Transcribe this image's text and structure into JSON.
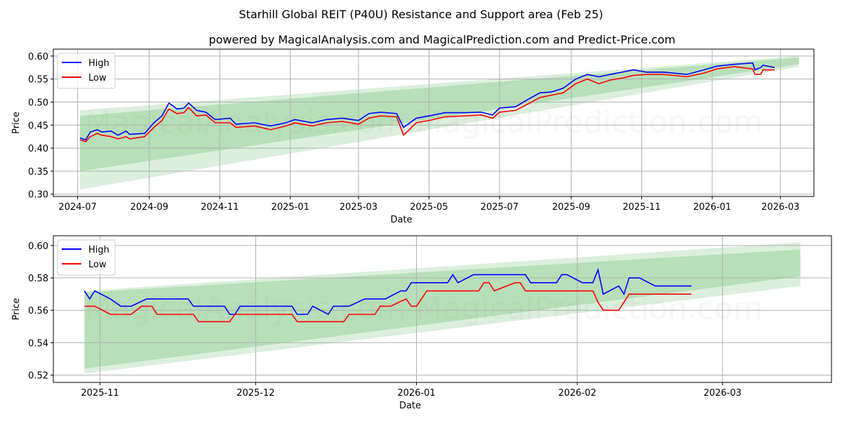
{
  "title": "Starhill Global REIT (P40U) Resistance and Support area (Feb 25)",
  "subtitle": "powered by MagicalAnalysis.com and MagicalPrediction.com and Predict-Price.com",
  "watermarks": [
    "MagicalAnalysis.com",
    "MagicalPrediction.com"
  ],
  "colors": {
    "high": "#0000ff",
    "low": "#ff0000",
    "band": "#4caf50"
  },
  "chart_data": [
    {
      "type": "line",
      "xlabel": "Date",
      "ylabel": "Price",
      "ylim": [
        0.295,
        0.615
      ],
      "yticks": [
        0.3,
        0.35,
        0.4,
        0.45,
        0.5,
        0.55,
        0.6
      ],
      "ytick_labels": [
        "0.30",
        "0.35",
        "0.40",
        "0.45",
        "0.50",
        "0.55",
        "0.60"
      ],
      "xticks": [
        "2024-07-01",
        "2024-09-01",
        "2024-11-01",
        "2025-01-01",
        "2025-03-01",
        "2025-05-01",
        "2025-07-01",
        "2025-09-01",
        "2025-11-01",
        "2026-01-01",
        "2026-03-01"
      ],
      "xtick_labels": [
        "2024-07",
        "2024-09",
        "2024-11",
        "2025-01",
        "2025-03",
        "2025-05",
        "2025-07",
        "2025-09",
        "2025-11",
        "2026-01",
        "2026-03"
      ],
      "xlim": [
        "2024-06-10",
        "2026-03-30"
      ],
      "grid": true,
      "legend": "top-left",
      "legend_entries": [
        "High",
        "Low"
      ],
      "bands": [
        {
          "start": "2024-07-03",
          "end": "2026-03-17",
          "upper": [
            0.482,
            0.6
          ],
          "lower": [
            0.31,
            0.577
          ]
        },
        {
          "start": "2024-07-03",
          "end": "2026-03-17",
          "upper": [
            0.47,
            0.597
          ],
          "lower": [
            0.35,
            0.582
          ]
        }
      ],
      "series": [
        {
          "name": "High",
          "points": [
            [
              "2024-07-03",
              0.422
            ],
            [
              "2024-07-08",
              0.418
            ],
            [
              "2024-07-12",
              0.435
            ],
            [
              "2024-07-18",
              0.44
            ],
            [
              "2024-07-22",
              0.435
            ],
            [
              "2024-07-30",
              0.437
            ],
            [
              "2024-08-05",
              0.428
            ],
            [
              "2024-08-12",
              0.437
            ],
            [
              "2024-08-15",
              0.43
            ],
            [
              "2024-08-28",
              0.432
            ],
            [
              "2024-09-05",
              0.455
            ],
            [
              "2024-09-12",
              0.47
            ],
            [
              "2024-09-18",
              0.498
            ],
            [
              "2024-09-25",
              0.485
            ],
            [
              "2024-10-01",
              0.487
            ],
            [
              "2024-10-05",
              0.498
            ],
            [
              "2024-10-12",
              0.482
            ],
            [
              "2024-10-20",
              0.478
            ],
            [
              "2024-10-28",
              0.462
            ],
            [
              "2024-11-10",
              0.465
            ],
            [
              "2024-11-15",
              0.452
            ],
            [
              "2024-12-01",
              0.455
            ],
            [
              "2024-12-15",
              0.448
            ],
            [
              "2024-12-28",
              0.455
            ],
            [
              "2025-01-05",
              0.462
            ],
            [
              "2025-01-20",
              0.455
            ],
            [
              "2025-02-01",
              0.462
            ],
            [
              "2025-02-15",
              0.465
            ],
            [
              "2025-03-01",
              0.46
            ],
            [
              "2025-03-10",
              0.475
            ],
            [
              "2025-03-20",
              0.478
            ],
            [
              "2025-04-03",
              0.475
            ],
            [
              "2025-04-09",
              0.445
            ],
            [
              "2025-04-20",
              0.465
            ],
            [
              "2025-05-01",
              0.47
            ],
            [
              "2025-05-15",
              0.477
            ],
            [
              "2025-06-01",
              0.477
            ],
            [
              "2025-06-15",
              0.478
            ],
            [
              "2025-06-25",
              0.472
            ],
            [
              "2025-07-01",
              0.487
            ],
            [
              "2025-07-15",
              0.49
            ],
            [
              "2025-07-25",
              0.505
            ],
            [
              "2025-08-05",
              0.52
            ],
            [
              "2025-08-15",
              0.522
            ],
            [
              "2025-08-25",
              0.53
            ],
            [
              "2025-09-05",
              0.55
            ],
            [
              "2025-09-15",
              0.56
            ],
            [
              "2025-09-25",
              0.555
            ],
            [
              "2025-10-05",
              0.56
            ],
            [
              "2025-10-15",
              0.565
            ],
            [
              "2025-10-25",
              0.57
            ],
            [
              "2025-11-05",
              0.565
            ],
            [
              "2025-11-20",
              0.565
            ],
            [
              "2025-12-10",
              0.56
            ],
            [
              "2025-12-25",
              0.57
            ],
            [
              "2026-01-05",
              0.578
            ],
            [
              "2026-01-20",
              0.582
            ],
            [
              "2026-02-05",
              0.585
            ],
            [
              "2026-02-07",
              0.57
            ],
            [
              "2026-02-12",
              0.575
            ],
            [
              "2026-02-14",
              0.58
            ],
            [
              "2026-02-24",
              0.575
            ]
          ]
        },
        {
          "name": "Low",
          "points": [
            [
              "2024-07-03",
              0.418
            ],
            [
              "2024-07-08",
              0.414
            ],
            [
              "2024-07-12",
              0.425
            ],
            [
              "2024-07-18",
              0.432
            ],
            [
              "2024-07-22",
              0.428
            ],
            [
              "2024-07-30",
              0.425
            ],
            [
              "2024-08-05",
              0.42
            ],
            [
              "2024-08-12",
              0.425
            ],
            [
              "2024-08-15",
              0.42
            ],
            [
              "2024-08-28",
              0.425
            ],
            [
              "2024-09-05",
              0.445
            ],
            [
              "2024-09-12",
              0.46
            ],
            [
              "2024-09-18",
              0.485
            ],
            [
              "2024-09-25",
              0.475
            ],
            [
              "2024-10-01",
              0.477
            ],
            [
              "2024-10-05",
              0.488
            ],
            [
              "2024-10-12",
              0.47
            ],
            [
              "2024-10-20",
              0.472
            ],
            [
              "2024-10-28",
              0.455
            ],
            [
              "2024-11-10",
              0.455
            ],
            [
              "2024-11-15",
              0.445
            ],
            [
              "2024-12-01",
              0.448
            ],
            [
              "2024-12-15",
              0.44
            ],
            [
              "2024-12-28",
              0.448
            ],
            [
              "2025-01-05",
              0.455
            ],
            [
              "2025-01-20",
              0.448
            ],
            [
              "2025-02-01",
              0.455
            ],
            [
              "2025-02-15",
              0.458
            ],
            [
              "2025-03-01",
              0.452
            ],
            [
              "2025-03-10",
              0.465
            ],
            [
              "2025-03-20",
              0.47
            ],
            [
              "2025-04-03",
              0.468
            ],
            [
              "2025-04-09",
              0.428
            ],
            [
              "2025-04-20",
              0.455
            ],
            [
              "2025-05-01",
              0.46
            ],
            [
              "2025-05-15",
              0.468
            ],
            [
              "2025-06-01",
              0.47
            ],
            [
              "2025-06-15",
              0.472
            ],
            [
              "2025-06-25",
              0.465
            ],
            [
              "2025-07-01",
              0.478
            ],
            [
              "2025-07-15",
              0.482
            ],
            [
              "2025-07-25",
              0.495
            ],
            [
              "2025-08-05",
              0.51
            ],
            [
              "2025-08-15",
              0.515
            ],
            [
              "2025-08-25",
              0.52
            ],
            [
              "2025-09-05",
              0.54
            ],
            [
              "2025-09-15",
              0.55
            ],
            [
              "2025-09-25",
              0.54
            ],
            [
              "2025-10-05",
              0.548
            ],
            [
              "2025-10-15",
              0.552
            ],
            [
              "2025-10-25",
              0.558
            ],
            [
              "2025-11-05",
              0.56
            ],
            [
              "2025-11-20",
              0.56
            ],
            [
              "2025-12-10",
              0.555
            ],
            [
              "2025-12-25",
              0.563
            ],
            [
              "2026-01-05",
              0.572
            ],
            [
              "2026-01-20",
              0.577
            ],
            [
              "2026-02-05",
              0.572
            ],
            [
              "2026-02-07",
              0.56
            ],
            [
              "2026-02-12",
              0.56
            ],
            [
              "2026-02-14",
              0.57
            ],
            [
              "2026-02-24",
              0.57
            ]
          ]
        }
      ]
    },
    {
      "type": "line",
      "xlabel": "Date",
      "ylabel": "Price",
      "ylim": [
        0.5155,
        0.606
      ],
      "yticks": [
        0.52,
        0.54,
        0.56,
        0.58,
        0.6
      ],
      "ytick_labels": [
        "0.52",
        "0.54",
        "0.56",
        "0.58",
        "0.60"
      ],
      "xticks": [
        "2025-11-01",
        "2025-12-01",
        "2026-01-01",
        "2026-02-01",
        "2026-03-01"
      ],
      "xtick_labels": [
        "2025-11",
        "2025-12",
        "2026-01",
        "2026-02",
        "2026-03"
      ],
      "xlim": [
        "2025-10-23",
        "2026-03-22"
      ],
      "grid": true,
      "legend": "top-left",
      "legend_entries": [
        "High",
        "Low"
      ],
      "bands": [
        {
          "start": "2025-10-29",
          "end": "2026-03-16",
          "upper": [
            0.572,
            0.602
          ],
          "lower": [
            0.521,
            0.575
          ]
        },
        {
          "start": "2025-10-29",
          "end": "2026-03-16",
          "upper": [
            0.571,
            0.5975
          ],
          "lower": [
            0.524,
            0.581
          ]
        }
      ],
      "series": [
        {
          "name": "High",
          "points": [
            [
              "2025-10-29",
              0.572
            ],
            [
              "2025-10-30",
              0.567
            ],
            [
              "2025-10-31",
              0.572
            ],
            [
              "2025-11-03",
              0.567
            ],
            [
              "2025-11-05",
              0.5625
            ],
            [
              "2025-11-07",
              0.5625
            ],
            [
              "2025-11-10",
              0.567
            ],
            [
              "2025-11-18",
              0.567
            ],
            [
              "2025-11-19",
              0.5625
            ],
            [
              "2025-11-25",
              0.5625
            ],
            [
              "2025-11-26",
              0.5575
            ],
            [
              "2025-11-27",
              0.5575
            ],
            [
              "2025-11-28",
              0.5625
            ],
            [
              "2025-12-08",
              0.5625
            ],
            [
              "2025-12-09",
              0.5575
            ],
            [
              "2025-12-11",
              0.5575
            ],
            [
              "2025-12-12",
              0.5625
            ],
            [
              "2025-12-15",
              0.5575
            ],
            [
              "2025-12-16",
              0.5625
            ],
            [
              "2025-12-19",
              0.5625
            ],
            [
              "2025-12-22",
              0.567
            ],
            [
              "2025-12-26",
              0.567
            ],
            [
              "2025-12-29",
              0.572
            ],
            [
              "2025-12-30",
              0.572
            ],
            [
              "2025-12-31",
              0.577
            ],
            [
              "2026-01-07",
              0.577
            ],
            [
              "2026-01-08",
              0.582
            ],
            [
              "2026-01-09",
              0.577
            ],
            [
              "2026-01-12",
              0.582
            ],
            [
              "2026-01-22",
              0.582
            ],
            [
              "2026-01-23",
              0.577
            ],
            [
              "2026-01-28",
              0.577
            ],
            [
              "2026-01-29",
              0.582
            ],
            [
              "2026-01-30",
              0.582
            ],
            [
              "2026-02-02",
              0.577
            ],
            [
              "2026-02-04",
              0.577
            ],
            [
              "2026-02-05",
              0.585
            ],
            [
              "2026-02-06",
              0.57
            ],
            [
              "2026-02-09",
              0.575
            ],
            [
              "2026-02-10",
              0.57
            ],
            [
              "2026-02-11",
              0.58
            ],
            [
              "2026-02-13",
              0.58
            ],
            [
              "2026-02-16",
              0.575
            ],
            [
              "2026-02-23",
              0.575
            ]
          ]
        },
        {
          "name": "Low",
          "points": [
            [
              "2025-10-29",
              0.5625
            ],
            [
              "2025-10-31",
              0.5625
            ],
            [
              "2025-11-03",
              0.5575
            ],
            [
              "2025-11-07",
              0.5575
            ],
            [
              "2025-11-09",
              0.5625
            ],
            [
              "2025-11-11",
              0.5625
            ],
            [
              "2025-11-12",
              0.5575
            ],
            [
              "2025-11-19",
              0.5575
            ],
            [
              "2025-11-20",
              0.553
            ],
            [
              "2025-11-26",
              0.553
            ],
            [
              "2025-11-27",
              0.5575
            ],
            [
              "2025-12-08",
              0.5575
            ],
            [
              "2025-12-09",
              0.553
            ],
            [
              "2025-12-18",
              0.553
            ],
            [
              "2025-12-19",
              0.5575
            ],
            [
              "2025-12-24",
              0.5575
            ],
            [
              "2025-12-25",
              0.5625
            ],
            [
              "2025-12-27",
              0.5625
            ],
            [
              "2025-12-30",
              0.567
            ],
            [
              "2025-12-31",
              0.5625
            ],
            [
              "2026-01-01",
              0.5625
            ],
            [
              "2026-01-03",
              0.572
            ],
            [
              "2026-01-13",
              0.572
            ],
            [
              "2026-01-14",
              0.577
            ],
            [
              "2026-01-15",
              0.577
            ],
            [
              "2026-01-16",
              0.572
            ],
            [
              "2026-01-20",
              0.577
            ],
            [
              "2026-01-21",
              0.577
            ],
            [
              "2026-01-22",
              0.572
            ],
            [
              "2026-02-04",
              0.572
            ],
            [
              "2026-02-05",
              0.565
            ],
            [
              "2026-02-06",
              0.56
            ],
            [
              "2026-02-09",
              0.56
            ],
            [
              "2026-02-11",
              0.57
            ],
            [
              "2026-02-23",
              0.57
            ]
          ]
        }
      ]
    }
  ]
}
